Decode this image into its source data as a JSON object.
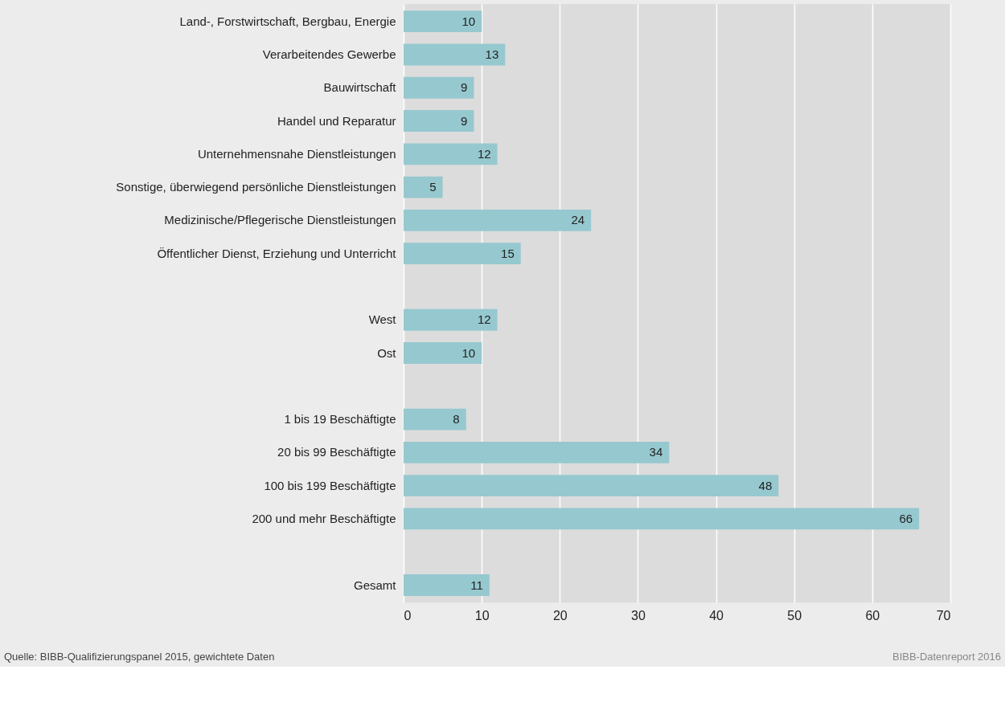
{
  "chart_data": {
    "type": "bar",
    "orientation": "horizontal",
    "categories": [
      "Land-, Forstwirtschaft, Bergbau, Energie",
      "Verarbeitendes Gewerbe",
      "Bauwirtschaft",
      "Handel und Reparatur",
      "Unternehmensnahe Dienstleistungen",
      "Sonstige, überwiegend persönliche Dienstleistungen",
      "Medizinische/Pflegerische Dienstleistungen",
      "Öffentlicher Dienst, Erziehung und Unterricht",
      null,
      "West",
      "Ost",
      null,
      "1 bis 19 Beschäftigte",
      "20 bis 99 Beschäftigte",
      "100 bis 199 Beschäftigte",
      "200 und mehr Beschäftigte",
      null,
      "Gesamt"
    ],
    "values": [
      10,
      13,
      9,
      9,
      12,
      5,
      24,
      15,
      null,
      12,
      10,
      null,
      8,
      34,
      48,
      66,
      null,
      11
    ],
    "color": "#96c8cf",
    "xlim": [
      0,
      70
    ],
    "xticks": [
      0,
      10,
      20,
      30,
      40,
      50,
      60,
      70
    ],
    "grid": "x",
    "data_labels": true,
    "annotations": [
      "Quelle: BIBB-Qualifizierungspanel 2015, gewichtete Daten",
      "BIBB-Datenreport 2016"
    ]
  }
}
